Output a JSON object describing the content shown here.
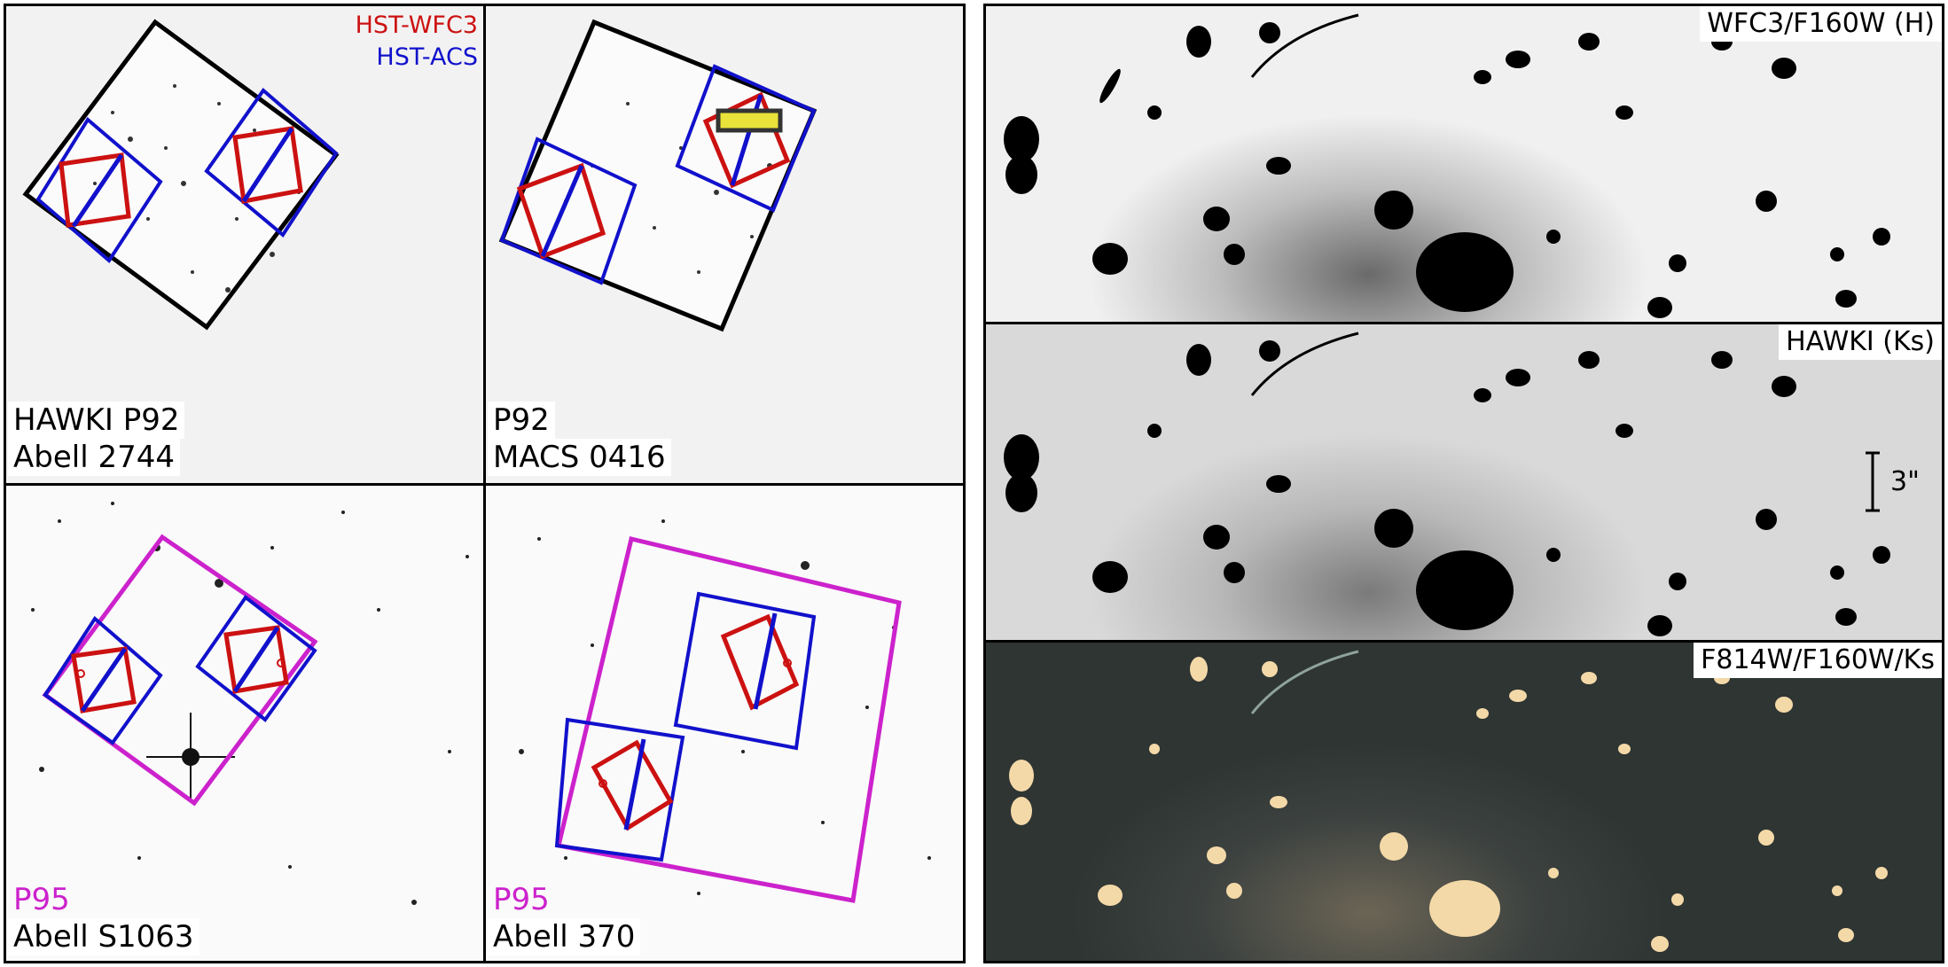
{
  "legend": {
    "wfc3": "HST-WFC3",
    "acs": "HST-ACS"
  },
  "colors": {
    "wfc3": "#cc1111",
    "acs": "#1111cc",
    "p95": "#cc22cc",
    "hawki_outline": "#000000"
  },
  "panels": {
    "a2744": {
      "line1": "HAWKI P92",
      "line2": "Abell 2744"
    },
    "m0416": {
      "line1": "P92",
      "line2": "MACS 0416"
    },
    "s1063": {
      "line1": "P95",
      "line2": "Abell S1063"
    },
    "a370": {
      "line1": "P95",
      "line2": "Abell 370"
    }
  },
  "strips": {
    "f160w": "WFC3/F160W (H)",
    "hawki": "HAWKI (Ks)",
    "color": "F814W/F160W/Ks",
    "scale": "3\""
  }
}
